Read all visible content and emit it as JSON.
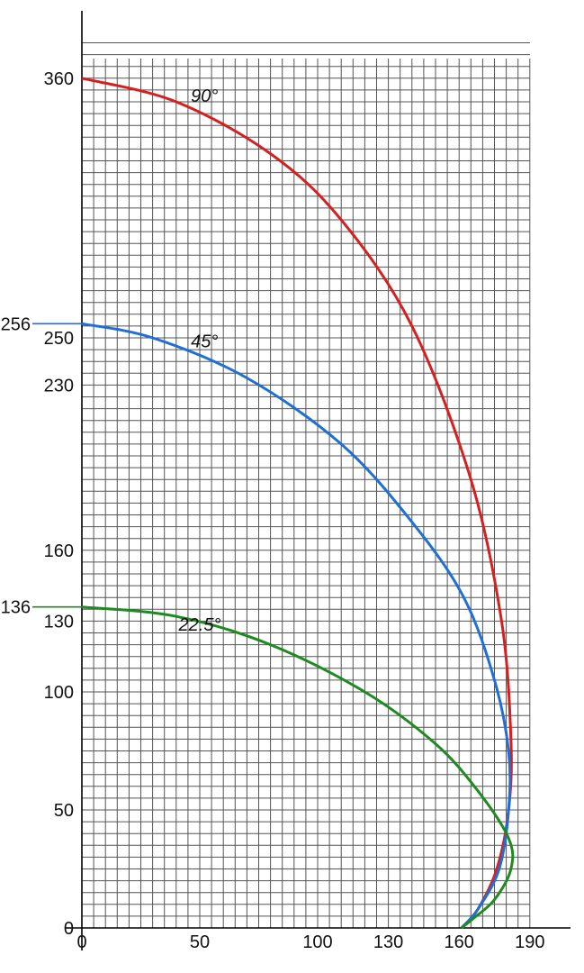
{
  "chart_data": {
    "type": "line",
    "title": "",
    "xlabel": "",
    "ylabel": "",
    "xlim": [
      0,
      190
    ],
    "ylim": [
      0,
      376
    ],
    "grid": true,
    "x_ticks": [
      0,
      50,
      100,
      130,
      160,
      190
    ],
    "y_ticks": [
      0,
      50,
      100,
      130,
      136,
      160,
      230,
      250,
      256,
      360
    ],
    "extended_y_ticks": [
      136,
      256
    ],
    "series": [
      {
        "name": "90°",
        "color": "#d62020",
        "label_at": [
          52,
          350
        ],
        "points": [
          [
            0,
            360
          ],
          [
            40,
            350
          ],
          [
            80,
            328
          ],
          [
            110,
            300
          ],
          [
            140,
            255
          ],
          [
            165,
            190
          ],
          [
            178,
            130
          ],
          [
            182,
            80
          ],
          [
            181,
            50
          ],
          [
            176,
            25
          ],
          [
            168,
            8
          ],
          [
            161,
            0
          ]
        ]
      },
      {
        "name": "45°",
        "color": "#1f6fd6",
        "label_at": [
          52,
          246
        ],
        "points": [
          [
            0,
            256
          ],
          [
            30,
            250
          ],
          [
            70,
            233
          ],
          [
            110,
            205
          ],
          [
            140,
            172
          ],
          [
            162,
            140
          ],
          [
            175,
            105
          ],
          [
            181,
            75
          ],
          [
            181,
            50
          ],
          [
            177,
            25
          ],
          [
            168,
            8
          ],
          [
            161,
            0
          ]
        ]
      },
      {
        "name": "22.5°",
        "color": "#1f8a1f",
        "label_at": [
          50,
          126
        ],
        "points": [
          [
            0,
            136
          ],
          [
            40,
            132
          ],
          [
            80,
            120
          ],
          [
            120,
            100
          ],
          [
            150,
            78
          ],
          [
            168,
            58
          ],
          [
            181,
            38
          ],
          [
            182,
            25
          ],
          [
            175,
            12
          ],
          [
            166,
            4
          ],
          [
            161,
            0
          ]
        ]
      }
    ]
  }
}
